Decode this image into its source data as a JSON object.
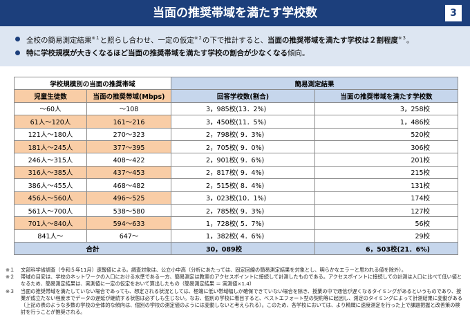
{
  "header": {
    "title": "当面の推奨帯域を満たす学校数",
    "page": "3"
  },
  "bullets": [
    [
      "全校の簡易測定結果",
      "※１",
      "と照らし合わせ、一定の仮定",
      "※２",
      "の下で推計すると、",
      "当面の推奨帯域を満たす学校は２割程度",
      "※３",
      "。"
    ],
    [
      "特に学校規模が大きくなるほど当面の推奨帯域を満たす学校の割合が少なくなる",
      "傾向。"
    ]
  ],
  "table": {
    "group_headers": [
      "学校規模別の当面の推奨帯域",
      "簡易測定結果"
    ],
    "headers": [
      "児童生徒数",
      "当面の推奨帯域(Mbps)",
      "回答学校数(割合)",
      "当面の推奨帯域を満たす学校数"
    ],
    "rows": [
      [
        "～60人",
        "～108",
        "3，985校(13．2%)",
        "3，258校"
      ],
      [
        "61人～120人",
        "161～216",
        "3，450校(11．5%)",
        "1，486校"
      ],
      [
        "121人～180人",
        "270～323",
        "2，798校( 9．3%)",
        "520校"
      ],
      [
        "181人～245人",
        "377～395",
        "2，705校( 9．0%)",
        "306校"
      ],
      [
        "246人～315人",
        "408～422",
        "2，901校( 9．6%)",
        "201校"
      ],
      [
        "316人～385人",
        "437～453",
        "2，817校( 9．4%)",
        "215校"
      ],
      [
        "386人～455人",
        "468～482",
        "2，515校( 8．4%)",
        "131校"
      ],
      [
        "456人～560人",
        "496～525",
        "3，023校(10．1%)",
        "174校"
      ],
      [
        "561人～700人",
        "538～580",
        "2，785校( 9．3%)",
        "127校"
      ],
      [
        "701人～840人",
        "594～633",
        "1，728校( 5．7%)",
        "56校"
      ],
      [
        "841人～",
        "647～",
        "1，382校( 4．6%)",
        "29校"
      ]
    ],
    "total": [
      "合計",
      "30，089校",
      "6，503校(21．6%)"
    ]
  },
  "notes": [
    {
      "mark": "※１",
      "text": "文部科学省調査（令和５年11月）速報値による。調査対象は、公立小中高（分析にあたっては、固定回線の簡易測定結果を対象とし、明らかなエラーと思われる値を除外）。"
    },
    {
      "mark": "※２",
      "text": "帯域の目安は、学校のネットワークの入口における水準である一方、簡易測定は教室のアクセスポイントに接続して計測したものである。アクセスポイントに接続しての計測は入口に比べて低い値となるため、簡易測定結果は、実測値に一定の仮定をおいて算出したもの（簡易測定結果 ＝ 実測値×1.4）"
    },
    {
      "mark": "※３",
      "text": "当面の推奨帯域を満たしていない場合であっても、想定される状況としては、極端に低い帯域幅しか確保できていない場合を除き、授業の中で通信が遅くなるタイミングがあるというものであり、授業が成立たない程度までデータの遅延が継続する状態は必ずしも生じない。なお、個別の学校に着目すると、ベストエフォート型の契約等に起因し、測定のタイミングによって計測結果に変動がある（上記の表のような多数の学校の全体的な傾向は、個別の学校の測定値のようには変動しないと考えられる）。このため、各学校においては、より精緻に速度測定を行った上で課題把握と改善策の検討を行うことが推奨される。"
    }
  ]
}
